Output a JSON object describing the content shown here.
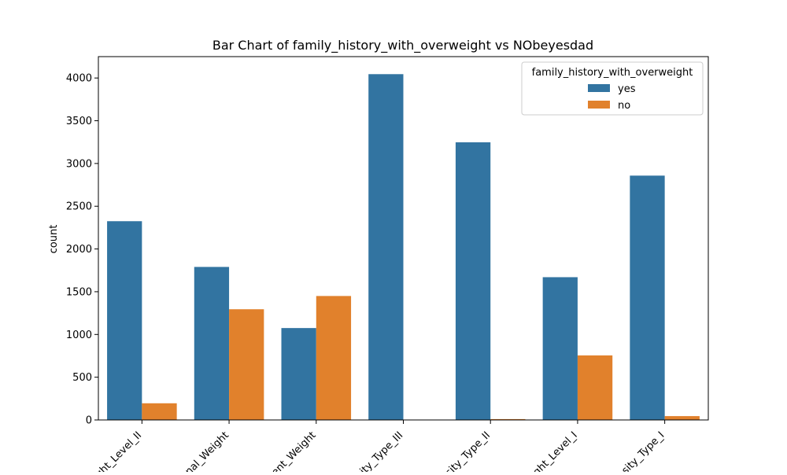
{
  "chart_data": {
    "type": "bar",
    "title": "Bar Chart of family_history_with_overweight vs NObeyesdad",
    "xlabel": "",
    "ylabel": "count",
    "ylim": [
      0,
      4250
    ],
    "yticks": [
      0,
      500,
      1000,
      1500,
      2000,
      2500,
      3000,
      3500,
      4000
    ],
    "categories": [
      "Overweight_Level_II",
      "Normal_Weight",
      "Insufficient_Weight",
      "Obesity_Type_III",
      "Obesity_Type_II",
      "Overweight_Level_I",
      "Obesity_Type_I"
    ],
    "category_labels_visible": [
      "ght_Level_II",
      "nal_Weight",
      "ent_Weight",
      "sity_Type_III",
      "sity_Type_II",
      "ght_Level_I",
      "sity_Type_I"
    ],
    "legend": {
      "title": "family_history_with_overweight",
      "placement": "top-right"
    },
    "series": [
      {
        "name": "yes",
        "color": "#3274a1",
        "values": [
          2325,
          1790,
          1075,
          4045,
          3248,
          1670,
          2858
        ]
      },
      {
        "name": "no",
        "color": "#e1812c",
        "values": [
          195,
          1295,
          1450,
          0,
          10,
          755,
          45
        ]
      }
    ],
    "grid": false
  }
}
